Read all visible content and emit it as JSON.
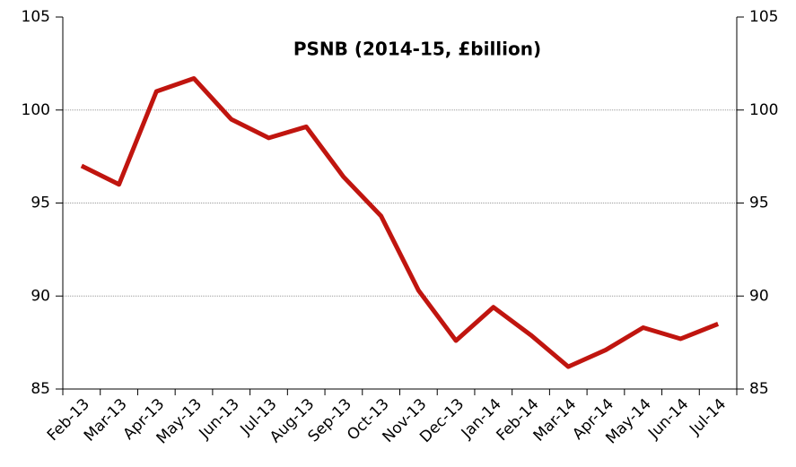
{
  "chart_data": {
    "type": "line",
    "title": "PSNB (2014-15, £billion)",
    "categories": [
      "Feb-13",
      "Mar-13",
      "Apr-13",
      "May-13",
      "Jun-13",
      "Jul-13",
      "Aug-13",
      "Sep-13",
      "Oct-13",
      "Nov-13",
      "Dec-13",
      "Jan-14",
      "Feb-14",
      "Mar-14",
      "Apr-14",
      "May-14",
      "Jun-14",
      "Jul-14"
    ],
    "series": [
      {
        "name": "PSNB",
        "color": "#c0150f",
        "values": [
          97.0,
          96.0,
          101.0,
          101.7,
          99.5,
          98.5,
          99.1,
          96.4,
          94.3,
          90.3,
          87.6,
          89.4,
          87.9,
          86.2,
          87.1,
          88.3,
          87.7,
          88.5
        ]
      }
    ],
    "ylim": [
      85,
      105
    ],
    "yticks": [
      85,
      90,
      95,
      100,
      105
    ],
    "y2lim": [
      85,
      105
    ],
    "y2ticks": [
      85,
      90,
      95,
      100,
      105
    ],
    "grid": true
  }
}
